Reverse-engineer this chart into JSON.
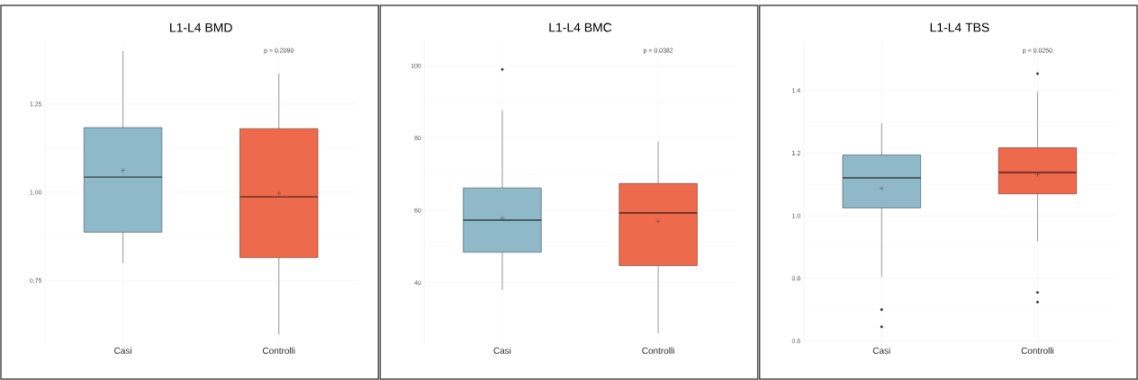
{
  "chart_data": [
    {
      "type": "box",
      "title": "L1-L4 BMD",
      "categories": [
        "Casi",
        "Controlli"
      ],
      "colors": [
        "#8fb8c8",
        "#ee6a4d"
      ],
      "boxes": [
        {
          "low": 0.8,
          "q1": 0.887,
          "median": 1.043,
          "q3": 1.183,
          "high": 1.4,
          "mean": 1.062
        },
        {
          "low": 0.597,
          "q1": 0.815,
          "median": 0.987,
          "q3": 1.18,
          "high": 1.336,
          "mean": 0.997
        }
      ],
      "ylim": [
        0.57,
        1.43
      ],
      "yticks": [
        0.75,
        {
          "value": 1,
          "label": "1.00"
        },
        1.25
      ],
      "grid": true,
      "annotations": [
        "p = 0.2090"
      ]
    },
    {
      "type": "box",
      "title": "L1-L4 BMC",
      "categories": [
        "Casi",
        "Controlli"
      ],
      "colors": [
        "#8fb8c8",
        "#ee6a4d"
      ],
      "boxes": [
        {
          "low": 38,
          "q1": 48.4,
          "median": 57.3,
          "q3": 66.2,
          "high": 87.7,
          "mean": 57.8,
          "outliers": [
            99
          ]
        },
        {
          "low": 26,
          "q1": 44.7,
          "median": 59.3,
          "q3": 67.4,
          "high": 79,
          "mean": 57
        }
      ],
      "ylim": [
        23,
        107
      ],
      "yticks": [
        40,
        60,
        80,
        100
      ],
      "grid": true,
      "annotations": [
        "p = 0.0382"
      ]
    },
    {
      "type": "box",
      "title": "L1-L4 TBS",
      "categories": [
        "Casi",
        "Controlli"
      ],
      "colors": [
        "#8fb8c8",
        "#ee6a4d"
      ],
      "boxes": [
        {
          "low": 0.805,
          "q1": 1.025,
          "median": 1.121,
          "q3": 1.194,
          "high": 1.296,
          "mean": 1.087,
          "outliers": [
            0.7,
            0.645
          ]
        },
        {
          "low": 0.918,
          "q1": 1.07,
          "median": 1.138,
          "q3": 1.217,
          "high": 1.397,
          "mean": 1.132,
          "outliers": [
            1.454,
            0.755,
            0.724
          ]
        }
      ],
      "ylim": [
        0.59,
        1.56
      ],
      "yticks": [
        0.6,
        0.8,
        {
          "value": 1,
          "label": "1.0"
        },
        1.2,
        1.4
      ],
      "grid": true,
      "annotations": [
        "p = 0.0250"
      ]
    }
  ]
}
